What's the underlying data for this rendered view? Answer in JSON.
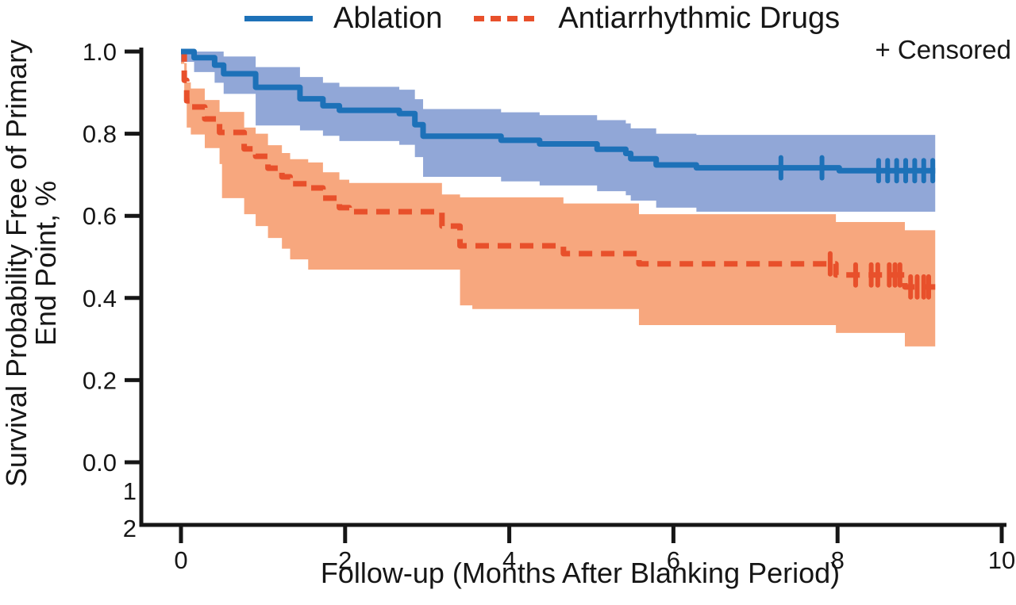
{
  "legend": {
    "items": [
      {
        "label": "Ablation",
        "color": "#1D71B8",
        "line_style": "solid"
      },
      {
        "label": "Antiarrhythmic Drugs",
        "color": "#E8502B",
        "line_style": "dashed"
      }
    ],
    "censored_label": "+ Censored"
  },
  "axes": {
    "y_title_line1": "Survival Probability Free of Primary",
    "y_title_line2": "End Point, %",
    "x_title": "Follow-up (Months After Blanking Period)"
  },
  "chart_data": {
    "type": "line",
    "subtype": "kaplan-meier-step",
    "title": "",
    "xlabel": "Follow-up (Months After Blanking Period)",
    "ylabel": "Survival Probability Free of Primary End Point, %",
    "xlim": [
      0,
      10
    ],
    "ylim": [
      0.0,
      1.0
    ],
    "grid": false,
    "legend_position": "top",
    "axis_color": "#161616",
    "x_ticks": [
      {
        "t": 0,
        "label": "0"
      },
      {
        "t": 2,
        "label": "2"
      },
      {
        "t": 4,
        "label": "4"
      },
      {
        "t": 6,
        "label": "6"
      },
      {
        "t": 8,
        "label": "8"
      },
      {
        "t": 10,
        "label": "10"
      }
    ],
    "y_ticks": [
      {
        "v": 1.0,
        "label": "1.0"
      },
      {
        "v": 0.8,
        "label": "0.8"
      },
      {
        "v": 0.6,
        "label": "0.6"
      },
      {
        "v": 0.4,
        "label": "0.4"
      },
      {
        "v": 0.2,
        "label": "0.2"
      },
      {
        "v": 0.0,
        "label": "0.0"
      }
    ],
    "group_row_labels": [
      "1",
      "2"
    ],
    "end_t": 9.19,
    "series": [
      {
        "name": "Ablation",
        "color": "#1D71B8",
        "band_color": "#7E98D0",
        "band_opacity": 0.85,
        "line_style": "solid",
        "steps": [
          {
            "t": 0.0,
            "s": 1.0,
            "lo": 0.975,
            "hi": 1.0
          },
          {
            "t": 0.16,
            "s": 0.985,
            "lo": 0.95,
            "hi": 1.0
          },
          {
            "t": 0.41,
            "s": 0.967,
            "lo": 0.924,
            "hi": 1.0
          },
          {
            "t": 0.52,
            "s": 0.946,
            "lo": 0.897,
            "hi": 0.988
          },
          {
            "t": 0.91,
            "s": 0.913,
            "lo": 0.82,
            "hi": 0.962
          },
          {
            "t": 1.45,
            "s": 0.885,
            "lo": 0.808,
            "hi": 0.938
          },
          {
            "t": 1.73,
            "s": 0.868,
            "lo": 0.795,
            "hi": 0.924
          },
          {
            "t": 1.93,
            "s": 0.857,
            "lo": 0.782,
            "hi": 0.914
          },
          {
            "t": 2.66,
            "s": 0.849,
            "lo": 0.773,
            "hi": 0.907
          },
          {
            "t": 2.85,
            "s": 0.822,
            "lo": 0.743,
            "hi": 0.884
          },
          {
            "t": 2.95,
            "s": 0.794,
            "lo": 0.695,
            "hi": 0.86
          },
          {
            "t": 3.9,
            "s": 0.784,
            "lo": 0.684,
            "hi": 0.852
          },
          {
            "t": 4.37,
            "s": 0.775,
            "lo": 0.674,
            "hi": 0.845
          },
          {
            "t": 5.07,
            "s": 0.762,
            "lo": 0.66,
            "hi": 0.833
          },
          {
            "t": 5.42,
            "s": 0.752,
            "lo": 0.65,
            "hi": 0.825
          },
          {
            "t": 5.48,
            "s": 0.739,
            "lo": 0.637,
            "hi": 0.813
          },
          {
            "t": 5.79,
            "s": 0.724,
            "lo": 0.62,
            "hi": 0.8
          },
          {
            "t": 6.28,
            "s": 0.717,
            "lo": 0.61,
            "hi": 0.797
          },
          {
            "t": 8.02,
            "s": 0.71,
            "lo": 0.61,
            "hi": 0.797
          }
        ],
        "censored_t": [
          7.31,
          7.81,
          8.5,
          8.61,
          8.72,
          8.83,
          8.94,
          9.05,
          9.16
        ]
      },
      {
        "name": "Antiarrhythmic Drugs",
        "color": "#E8502B",
        "band_color": "#F7A77E",
        "band_opacity": 1,
        "line_style": "dashed",
        "steps": [
          {
            "t": 0.0,
            "s": 1.0,
            "lo": 0.97,
            "hi": 1.0
          },
          {
            "t": 0.04,
            "s": 0.93,
            "lo": 0.875,
            "hi": 0.972
          },
          {
            "t": 0.07,
            "s": 0.88,
            "lo": 0.815,
            "hi": 0.925
          },
          {
            "t": 0.12,
            "s": 0.865,
            "lo": 0.798,
            "hi": 0.91
          },
          {
            "t": 0.29,
            "s": 0.836,
            "lo": 0.765,
            "hi": 0.882
          },
          {
            "t": 0.47,
            "s": 0.803,
            "lo": 0.726,
            "hi": 0.853
          },
          {
            "t": 0.5,
            "s": 0.803,
            "lo": 0.643,
            "hi": 0.853
          },
          {
            "t": 0.77,
            "s": 0.763,
            "lo": 0.604,
            "hi": 0.815
          },
          {
            "t": 0.91,
            "s": 0.745,
            "lo": 0.575,
            "hi": 0.8
          },
          {
            "t": 1.06,
            "s": 0.716,
            "lo": 0.546,
            "hi": 0.772
          },
          {
            "t": 1.23,
            "s": 0.695,
            "lo": 0.52,
            "hi": 0.753
          },
          {
            "t": 1.33,
            "s": 0.678,
            "lo": 0.494,
            "hi": 0.738
          },
          {
            "t": 1.55,
            "s": 0.668,
            "lo": 0.469,
            "hi": 0.73
          },
          {
            "t": 1.73,
            "s": 0.643,
            "lo": 0.469,
            "hi": 0.706
          },
          {
            "t": 1.93,
            "s": 0.62,
            "lo": 0.469,
            "hi": 0.688
          },
          {
            "t": 2.05,
            "s": 0.61,
            "lo": 0.469,
            "hi": 0.68
          },
          {
            "t": 3.18,
            "s": 0.575,
            "lo": 0.469,
            "hi": 0.652
          },
          {
            "t": 3.4,
            "s": 0.527,
            "lo": 0.382,
            "hi": 0.645
          },
          {
            "t": 3.55,
            "s": 0.527,
            "lo": 0.373,
            "hi": 0.645
          },
          {
            "t": 4.66,
            "s": 0.508,
            "lo": 0.373,
            "hi": 0.63
          },
          {
            "t": 5.58,
            "s": 0.483,
            "lo": 0.334,
            "hi": 0.604
          },
          {
            "t": 7.98,
            "s": 0.456,
            "lo": 0.315,
            "hi": 0.585
          },
          {
            "t": 8.82,
            "s": 0.427,
            "lo": 0.282,
            "hi": 0.565
          }
        ],
        "censored_t": [
          7.91,
          8.22,
          8.41,
          8.49,
          8.63,
          8.7,
          8.76,
          8.89,
          8.97,
          9.05,
          9.11
        ]
      }
    ]
  }
}
